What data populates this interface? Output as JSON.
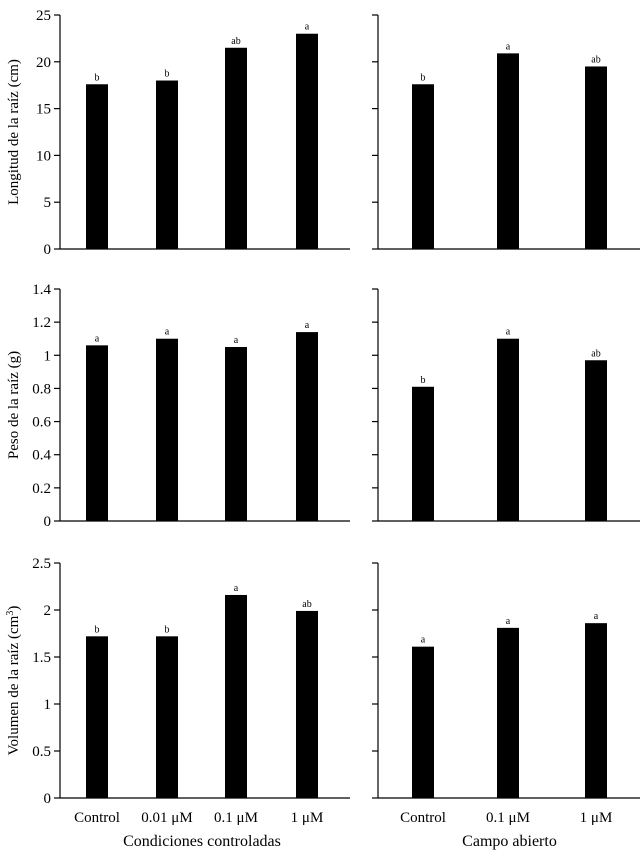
{
  "chart_data": [
    {
      "id": "len-cc",
      "type": "bar",
      "categories": [
        "Control",
        "0.01 μM",
        "0.1 μM",
        "1 μM"
      ],
      "values": [
        17.6,
        18.0,
        21.5,
        23.0
      ],
      "significance": [
        "b",
        "b",
        "ab",
        "a"
      ],
      "ylim": [
        0,
        25
      ],
      "yticks": [
        "0",
        "5",
        "10",
        "15",
        "20",
        "25"
      ],
      "ylabel": "Longitud de la raíz (cm)",
      "xlabel": "",
      "grid": false
    },
    {
      "id": "len-ca",
      "type": "bar",
      "categories": [
        "Control",
        "0.1 μM",
        "1 μM"
      ],
      "values": [
        17.6,
        20.9,
        19.5
      ],
      "significance": [
        "b",
        "a",
        "ab"
      ],
      "ylim": [
        0,
        25
      ],
      "yticks": [
        "0",
        "5",
        "10",
        "15",
        "20",
        "25"
      ],
      "ylabel": "",
      "xlabel": "",
      "grid": false
    },
    {
      "id": "wt-cc",
      "type": "bar",
      "categories": [
        "Control",
        "0.01 μM",
        "0.1 μM",
        "1 μM"
      ],
      "values": [
        1.06,
        1.1,
        1.05,
        1.14
      ],
      "significance": [
        "a",
        "a",
        "a",
        "a"
      ],
      "ylim": [
        0,
        1.4
      ],
      "yticks": [
        "0",
        "0.2",
        "0.4",
        "0.6",
        "0.8",
        "1",
        "1.2",
        "1.4"
      ],
      "ylabel": "Peso de la raíz (g)",
      "xlabel": "",
      "grid": false
    },
    {
      "id": "wt-ca",
      "type": "bar",
      "categories": [
        "Control",
        "0.1 μM",
        "1 μM"
      ],
      "values": [
        0.81,
        1.1,
        0.97
      ],
      "significance": [
        "b",
        "a",
        "ab"
      ],
      "ylim": [
        0,
        1.4
      ],
      "yticks": [
        "0",
        "0.2",
        "0.4",
        "0.6",
        "0.8",
        "1",
        "1.2",
        "1.4"
      ],
      "ylabel": "",
      "xlabel": "",
      "grid": false
    },
    {
      "id": "vol-cc",
      "type": "bar",
      "categories": [
        "Control",
        "0.01 μM",
        "0.1 μM",
        "1 μM"
      ],
      "values": [
        1.72,
        1.72,
        2.16,
        1.99
      ],
      "significance": [
        "b",
        "b",
        "a",
        "ab"
      ],
      "ylim": [
        0,
        2.5
      ],
      "yticks": [
        "0",
        "0.5",
        "1",
        "1.5",
        "2",
        "2.5"
      ],
      "ylabel": "Volumen de la raíz (cm",
      "ylabel_superscript": "3",
      "ylabel_suffix": ")",
      "xlabel": "Condiciones controladas",
      "show_categories": true,
      "grid": false
    },
    {
      "id": "vol-ca",
      "type": "bar",
      "categories": [
        "Control",
        "0.1 μM",
        "1 μM"
      ],
      "values": [
        1.61,
        1.81,
        1.86
      ],
      "significance": [
        "a",
        "a",
        "a"
      ],
      "ylim": [
        0,
        2.5
      ],
      "yticks": [
        "0",
        "0.5",
        "1",
        "1.5",
        "2",
        "2.5"
      ],
      "ylabel": "",
      "xlabel": "Campo abierto",
      "show_categories": true,
      "grid": false
    }
  ],
  "style": {
    "bar_color": "#000000",
    "axis_color": "#000000",
    "background": "#ffffff"
  }
}
